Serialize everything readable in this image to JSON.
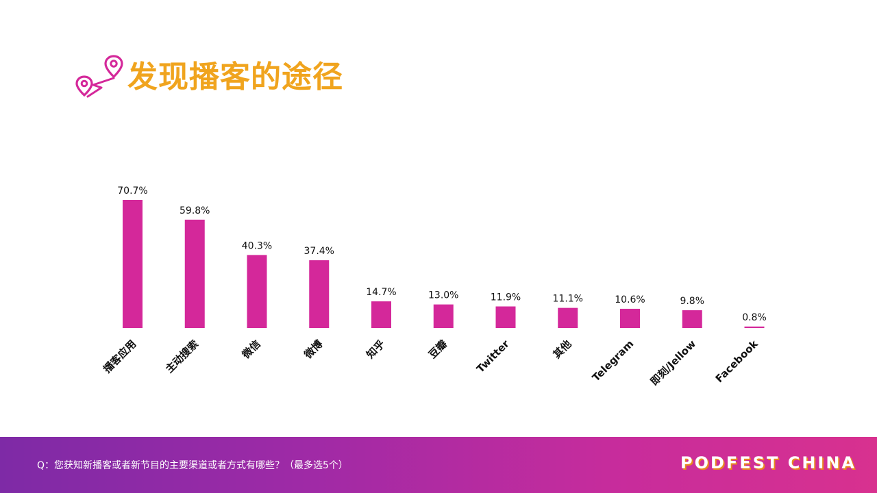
{
  "header": {
    "title": "发现播客的途径",
    "icon": "location-pin-route-icon"
  },
  "chart_data": {
    "type": "bar",
    "categories": [
      "播客应用",
      "主动搜索",
      "微信",
      "微博",
      "知乎",
      "豆瓣",
      "Twitter",
      "其他",
      "Telegram",
      "即刻/Jellow",
      "Facebook"
    ],
    "values": [
      70.7,
      59.8,
      40.3,
      37.4,
      14.7,
      13.0,
      11.9,
      11.1,
      10.6,
      9.8,
      0.8
    ],
    "value_labels": [
      "70.7%",
      "59.8%",
      "40.3%",
      "37.4%",
      "14.7%",
      "13.0%",
      "11.9%",
      "11.1%",
      "10.6%",
      "9.8%",
      "0.8%"
    ],
    "unit": "%",
    "ylim": [
      0,
      70.7
    ],
    "grid": false,
    "bar_color": "#d4289a"
  },
  "footer": {
    "question": "Q：您获知新播客或者新节目的主要渠道或者方式有哪些？（最多选5个）",
    "brand": "PODFEST CHINA"
  },
  "colors": {
    "title": "#f0a41e",
    "accent": "#d4289a",
    "footer_start": "#7e2aa6",
    "footer_end": "#d8318f"
  }
}
